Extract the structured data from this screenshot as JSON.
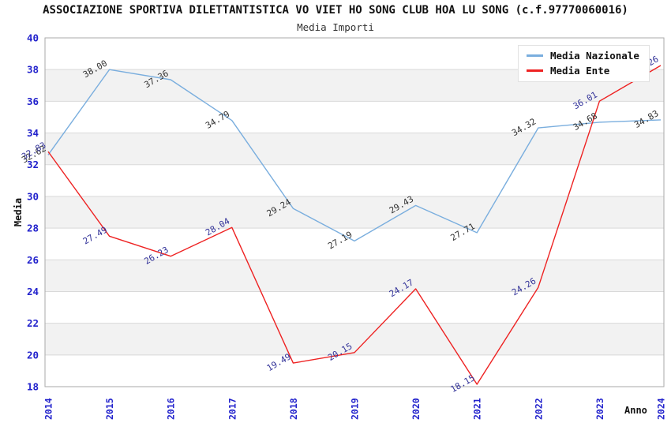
{
  "header": {
    "title": "ASSOCIAZIONE SPORTIVA DILETTANTISTICA VO VIET HO SONG CLUB HOA LU SONG (c.f.97770060016)",
    "subtitle": "Media Importi"
  },
  "chart_data": {
    "type": "line",
    "title": "Media Importi",
    "x": [
      2014,
      2015,
      2016,
      2017,
      2018,
      2019,
      2020,
      2021,
      2022,
      2023,
      2024
    ],
    "series": [
      {
        "name": "Media Nazionale",
        "color": "#7aaede",
        "label_color": "#333333",
        "values": [
          32.62,
          38.0,
          37.36,
          34.79,
          29.24,
          27.19,
          29.43,
          27.71,
          34.32,
          34.68,
          34.83
        ]
      },
      {
        "name": "Media Ente",
        "color": "#ee2222",
        "label_color": "#333399",
        "values": [
          32.83,
          27.49,
          26.23,
          28.04,
          19.49,
          20.15,
          24.17,
          18.15,
          24.26,
          36.01,
          38.26
        ]
      }
    ],
    "xlabel": "Anno",
    "ylabel": "Media",
    "ylim": [
      18,
      40
    ],
    "ytick_step": 2,
    "grid": true,
    "legend_position": "top-right",
    "style": {
      "tick_label_color": "#2222cc",
      "axis_title_color": "#111111",
      "stripe_color": "#f2f2f2",
      "grid_color": "#d9d9d9",
      "border_color": "#aaaaaa",
      "value_label_decimals": 2
    }
  }
}
